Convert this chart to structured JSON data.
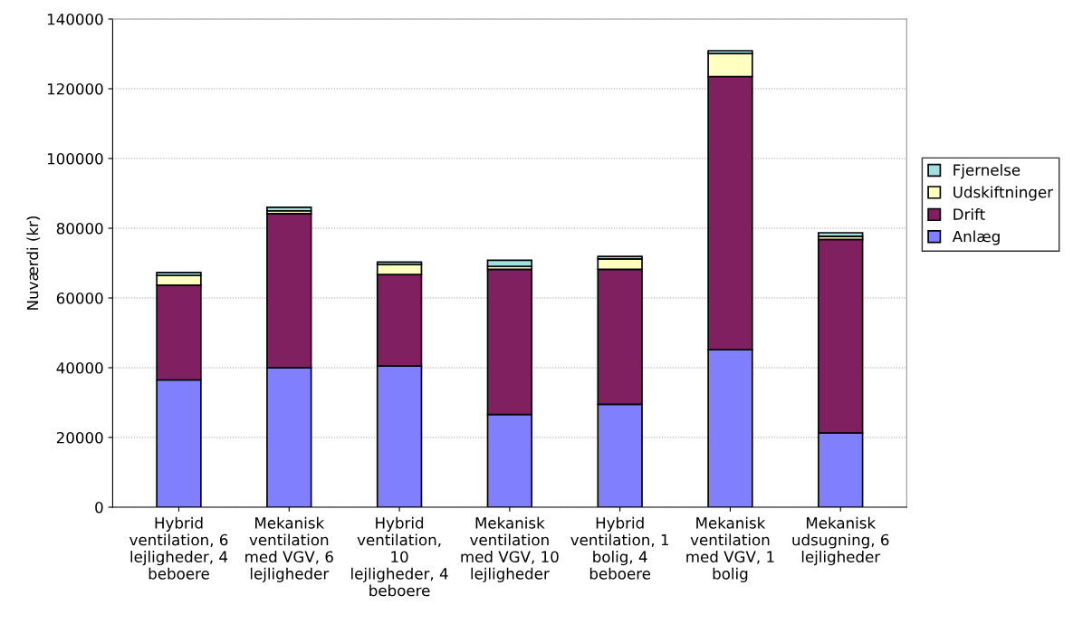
{
  "chart_data": {
    "type": "bar",
    "stacked": true,
    "ylabel": "Nuværdi (kr)",
    "categories": [
      "Hybrid ventilation, 6 lejligheder, 4 beboere",
      "Mekanisk ventilation med VGV, 6 lejligheder",
      "Hybrid ventilation, 10 lejligheder, 4 beboere",
      "Mekanisk ventilation med VGV, 10 lejligheder",
      "Hybrid ventilation, 1 bolig, 4 beboere",
      "Mekanisk ventilation med VGV, 1 bolig",
      "Mekanisk udsugning, 6 lejligheder"
    ],
    "series": [
      {
        "name": "Anlæg",
        "color": "#8080ff",
        "values": [
          36500,
          40000,
          40500,
          26600,
          29500,
          45200,
          21300
        ]
      },
      {
        "name": "Drift",
        "color": "#802060",
        "values": [
          27200,
          44200,
          26200,
          41600,
          38700,
          78300,
          55500
        ]
      },
      {
        "name": "Udskiftninger",
        "color": "#ffffc0",
        "values": [
          2800,
          800,
          2900,
          900,
          3000,
          6600,
          900
        ]
      },
      {
        "name": "Fjernelse",
        "color": "#a0e0e0",
        "values": [
          800,
          1000,
          700,
          1700,
          700,
          800,
          1000
        ]
      }
    ],
    "ylim": [
      0,
      140000
    ],
    "yticks": [
      0,
      20000,
      40000,
      60000,
      80000,
      100000,
      120000,
      140000
    ],
    "grid": "y",
    "legend": "right"
  }
}
